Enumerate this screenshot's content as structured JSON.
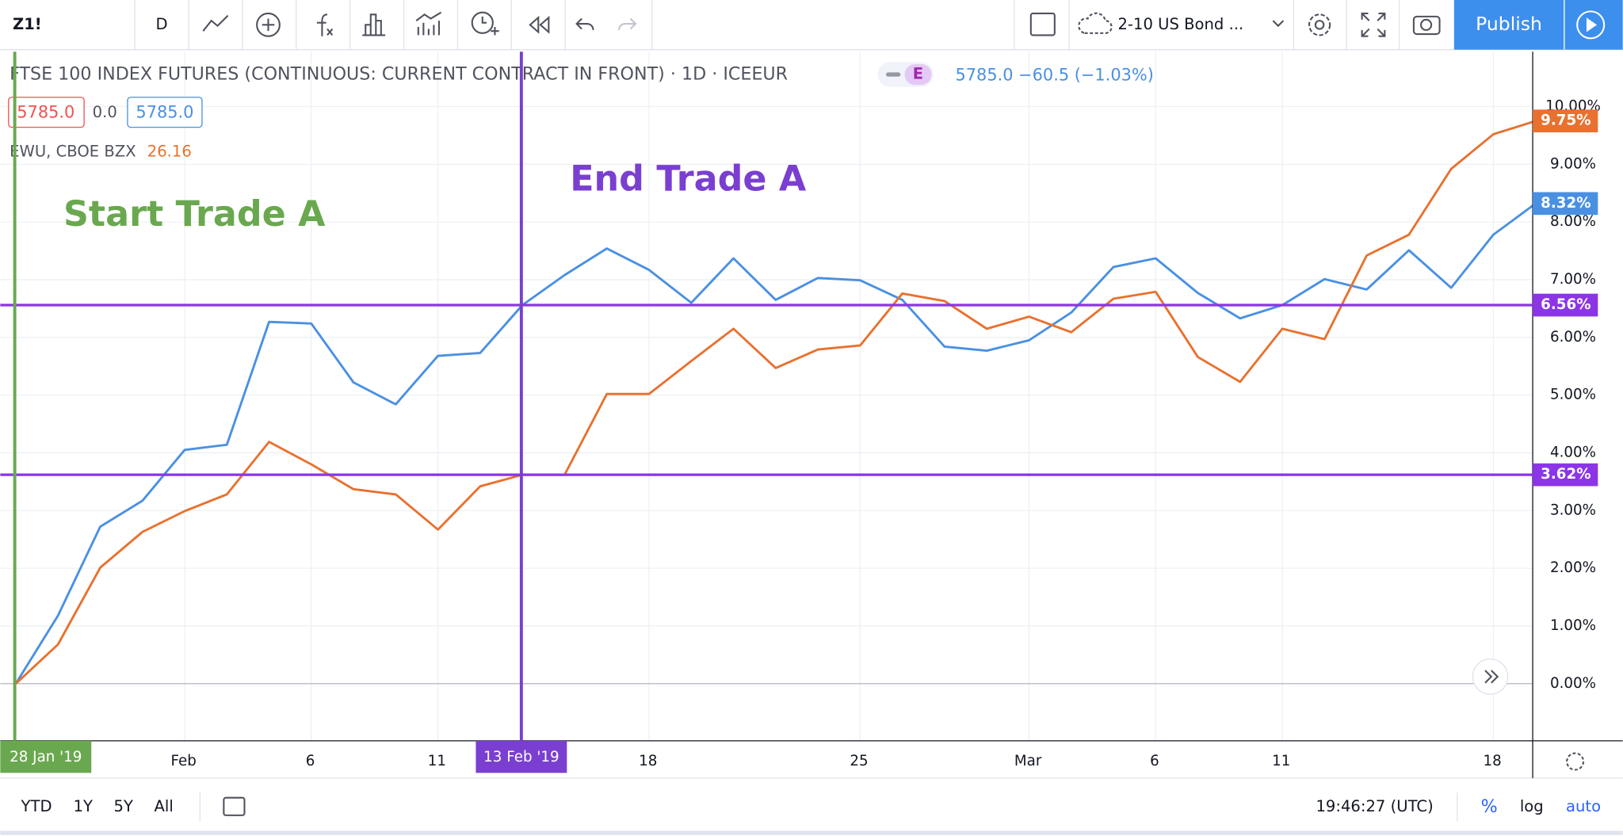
{
  "toolbar": {
    "symbol": "Z1!",
    "interval": "D",
    "compare": "2-10 US Bond ...",
    "publish": "Publish"
  },
  "legend": {
    "main_open": "5785.0",
    "main_change": "0.0",
    "main_close": "5785.0",
    "badge": "E",
    "quote": "5785.0 −60.5 (−1.03%)"
  },
  "chart_data": {
    "type": "line",
    "categories": [
      "28 Jan '19",
      null,
      null,
      null,
      "Feb",
      null,
      null,
      "6",
      null,
      null,
      "11",
      null,
      "13 Feb '19",
      null,
      null,
      "18",
      null,
      null,
      null,
      null,
      "25",
      null,
      null,
      null,
      "Mar",
      null,
      null,
      "6",
      null,
      null,
      "11",
      null,
      null,
      null,
      null,
      "18",
      null
    ],
    "series": [
      {
        "name": "FTSE 100 INDEX FUTURES (CONTINUOUS: CURRENT CONTRACT IN FRONT) · 1D · ICEEUR",
        "color": "#4a90e2",
        "last_label": "8.32%",
        "values": [
          0,
          1.18,
          2.72,
          3.17,
          4.05,
          4.14,
          6.27,
          6.24,
          5.22,
          4.84,
          5.68,
          5.73,
          6.56,
          7.08,
          7.54,
          7.17,
          6.6,
          7.37,
          6.65,
          7.03,
          6.99,
          6.65,
          5.84,
          5.77,
          5.95,
          6.43,
          7.22,
          7.37,
          6.77,
          6.33,
          6.56,
          7.01,
          6.83,
          7.51,
          6.86,
          7.78,
          8.32
        ]
      },
      {
        "name": "EWU, CBOE BZX",
        "last_price": "26.16",
        "color": "#e8712f",
        "last_label": "9.75%",
        "values": [
          0,
          0.68,
          2.01,
          2.63,
          2.99,
          3.28,
          4.19,
          3.8,
          3.37,
          3.28,
          2.67,
          3.42,
          3.62,
          3.62,
          5.02,
          5.02,
          5.59,
          6.15,
          5.47,
          5.79,
          5.86,
          6.76,
          6.63,
          6.15,
          6.36,
          6.09,
          6.67,
          6.79,
          5.66,
          5.23,
          6.15,
          5.97,
          7.42,
          7.78,
          8.92,
          9.52,
          9.75
        ]
      }
    ],
    "ylim": [
      -0.99,
      10.95
    ],
    "yticks": [
      {
        "value": 0,
        "label": "0.00%"
      },
      {
        "value": 1,
        "label": "1.00%"
      },
      {
        "value": 2,
        "label": "2.00%"
      },
      {
        "value": 3,
        "label": "3.00%"
      },
      {
        "value": 4,
        "label": "4.00%"
      },
      {
        "value": 5,
        "label": "5.00%"
      },
      {
        "value": 6,
        "label": "6.00%"
      },
      {
        "value": 7,
        "label": "7.00%"
      },
      {
        "value": 8,
        "label": "8.00%"
      },
      {
        "value": 9,
        "label": "9.00%"
      },
      {
        "value": 10,
        "label": "10.00%"
      }
    ],
    "grid": true,
    "horizontal_lines": [
      {
        "value": 6.56,
        "label": "6.56%",
        "color": "#8b35e6"
      },
      {
        "value": 3.62,
        "label": "3.62%",
        "color": "#8b35e6"
      }
    ],
    "vertical_lines": [
      {
        "category": "28 Jan '19",
        "text": "Start Trade A",
        "color": "#6aa84f"
      },
      {
        "category": "13 Feb '19",
        "text": "End Trade A",
        "color": "#7a3fd0"
      }
    ]
  },
  "bottom_bar": {
    "ranges": [
      "YTD",
      "1Y",
      "5Y",
      "All"
    ],
    "time": "19:46:27 (UTC)",
    "scale_modes": [
      "%",
      "log",
      "auto"
    ]
  }
}
